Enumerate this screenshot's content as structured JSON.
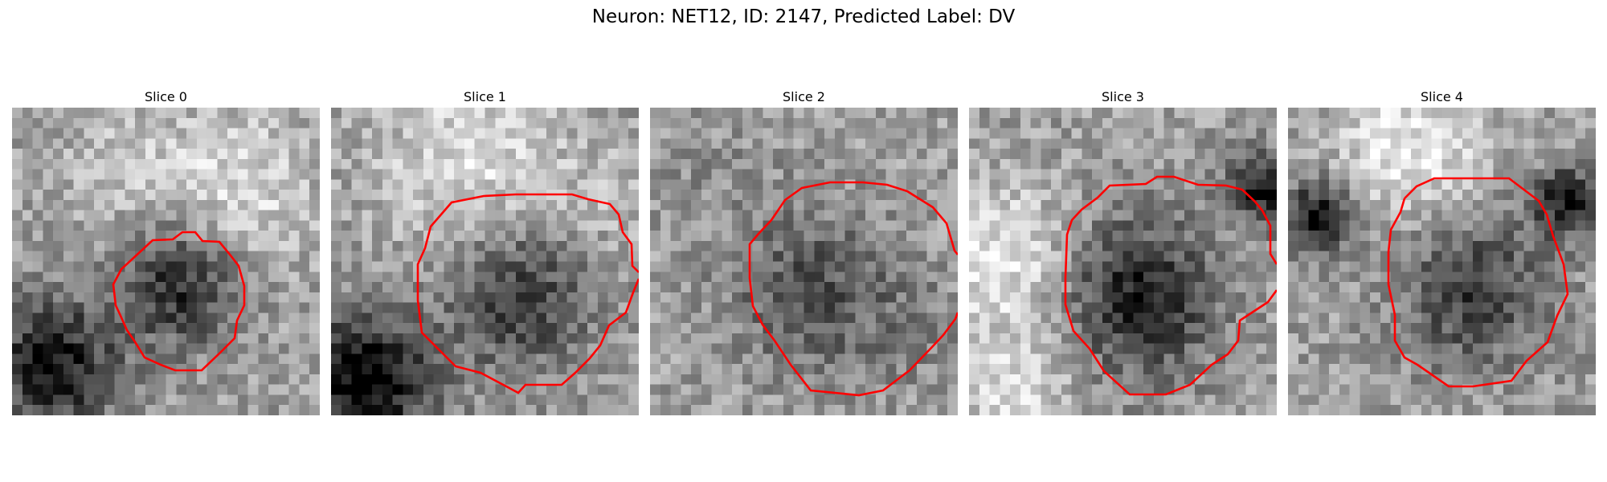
{
  "title": "Neuron: NET12, ID: 2147, Predicted Label: DV",
  "contour_color": "#ff0000",
  "slices": [
    {
      "label": "Slice 0"
    },
    {
      "label": "Slice 1"
    },
    {
      "label": "Slice 2"
    },
    {
      "label": "Slice 3"
    },
    {
      "label": "Slice 4"
    }
  ]
}
